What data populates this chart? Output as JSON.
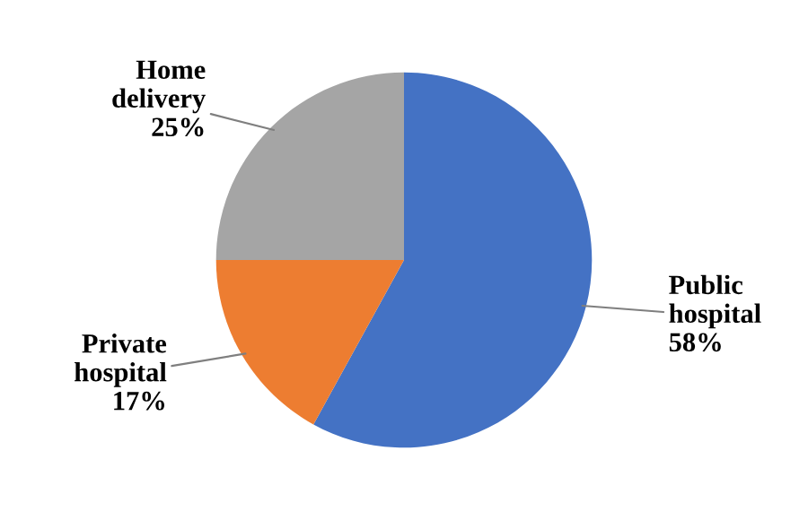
{
  "chart_data": {
    "type": "pie",
    "categories": [
      "Public hospital",
      "Private hospital",
      "Home delivery"
    ],
    "values": [
      58,
      17,
      25
    ],
    "colors": [
      "#4472c4",
      "#ed7d31",
      "#a5a5a5"
    ],
    "value_labels": [
      "58%",
      "17%",
      "25%"
    ],
    "legend": false
  }
}
